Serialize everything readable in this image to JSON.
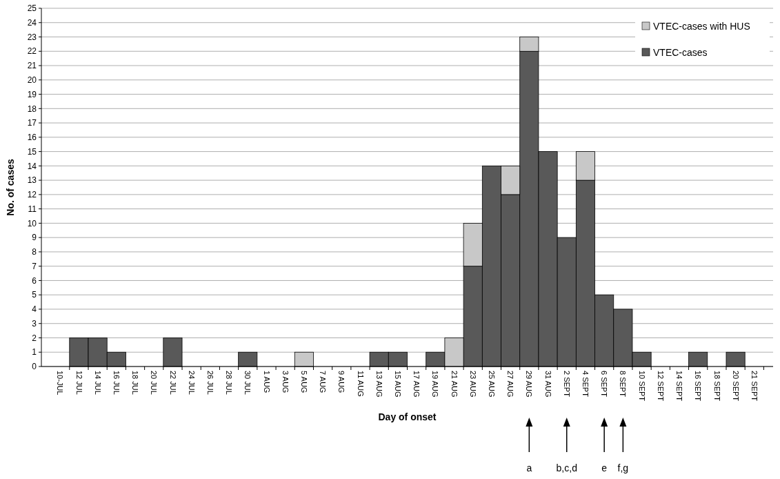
{
  "chart_data": {
    "type": "bar",
    "stacked": true,
    "xlabel": "Day of onset",
    "ylabel": "No. of cases",
    "categories": [
      "10-JUL",
      "12 JUL",
      "14 JUL",
      "16 JUL",
      "18 JUL",
      "20 JUL",
      "22 JUL",
      "24 JUL",
      "26 JUL",
      "28 JUL",
      "30 JUL",
      "1 AUG",
      "3 AUG",
      "5 AUG",
      "7 AUG",
      "9 AUG",
      "11 AUG",
      "13 AUG",
      "15 AUG",
      "17 AUG",
      "19 AUG",
      "21 AUG",
      "23 AUG",
      "25 AUG",
      "27 AUG",
      "29 AUG",
      "31 AUG",
      "2 SEPT",
      "4 SEPT",
      "6 SEPT",
      "8 SEPT",
      "10 SEPT",
      "12 SEPT",
      "14 SEPT",
      "16 SEPT",
      "18 SEPT",
      "20 SEPT",
      "21 SEPT"
    ],
    "series": [
      {
        "name": "VTEC-cases",
        "color": "#595959",
        "values": [
          0,
          2,
          2,
          1,
          0,
          0,
          2,
          0,
          0,
          0,
          1,
          0,
          0,
          0,
          0,
          0,
          0,
          1,
          1,
          0,
          1,
          0,
          7,
          14,
          12,
          22,
          15,
          9,
          13,
          5,
          4,
          1,
          0,
          0,
          1,
          0,
          1,
          0
        ]
      },
      {
        "name": "VTEC-cases with HUS",
        "color": "#c8c8c8",
        "values": [
          0,
          0,
          0,
          0,
          0,
          0,
          0,
          0,
          0,
          0,
          0,
          0,
          0,
          1,
          0,
          0,
          0,
          0,
          0,
          0,
          0,
          2,
          3,
          0,
          2,
          1,
          0,
          0,
          2,
          0,
          0,
          0,
          0,
          0,
          0,
          0,
          0,
          0
        ]
      }
    ],
    "ylim": [
      0,
      25
    ],
    "yticks": [
      0,
      1,
      2,
      3,
      4,
      5,
      6,
      7,
      8,
      9,
      10,
      11,
      12,
      13,
      14,
      15,
      16,
      17,
      18,
      19,
      20,
      21,
      22,
      23,
      24,
      25
    ],
    "grid": "y",
    "legend": "top right",
    "annotations": [
      "a",
      "b,c,d",
      "e",
      "f,g"
    ]
  }
}
